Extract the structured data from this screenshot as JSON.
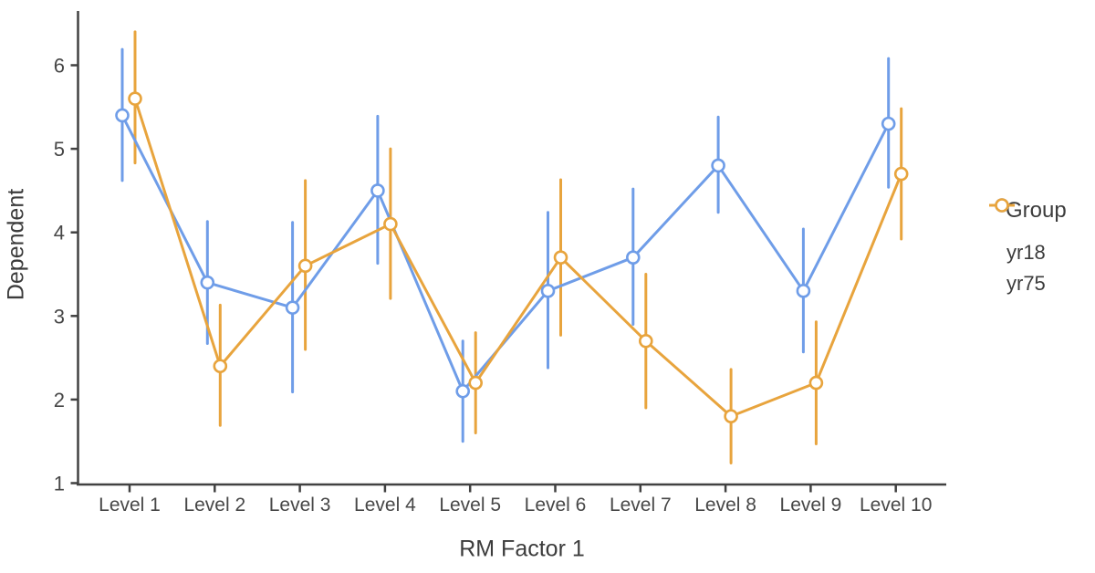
{
  "chart_data": {
    "type": "line",
    "title": "",
    "xlabel": "RM Factor 1",
    "ylabel": "Dependent",
    "categories": [
      "Level 1",
      "Level 2",
      "Level 3",
      "Level 4",
      "Level 5",
      "Level 6",
      "Level 7",
      "Level 8",
      "Level 9",
      "Level 10"
    ],
    "yticks": [
      1,
      2,
      3,
      4,
      5,
      6
    ],
    "ylim": [
      1,
      6.65
    ],
    "grid": false,
    "marker": "open-circle",
    "error_bars": true,
    "legend_title": "Group",
    "legend_position": "right",
    "series": [
      {
        "name": "yr18",
        "color": "#6F9DE8",
        "values": [
          5.4,
          3.4,
          3.1,
          4.5,
          2.1,
          3.3,
          3.7,
          4.8,
          3.3,
          5.3
        ],
        "ci_upper": [
          6.19,
          4.13,
          4.12,
          5.39,
          2.7,
          4.24,
          4.52,
          5.38,
          4.04,
          6.08
        ],
        "ci_lower": [
          4.62,
          2.67,
          2.09,
          3.63,
          1.5,
          2.38,
          2.9,
          4.24,
          2.57,
          4.54
        ]
      },
      {
        "name": "yr75",
        "color": "#E8A43D",
        "values": [
          5.6,
          2.4,
          3.6,
          4.1,
          2.2,
          3.7,
          2.7,
          1.8,
          2.2,
          4.7
        ],
        "ci_upper": [
          6.4,
          3.13,
          4.62,
          5.0,
          2.8,
          4.63,
          3.5,
          2.36,
          2.93,
          5.48
        ],
        "ci_lower": [
          4.83,
          1.69,
          2.6,
          3.21,
          1.6,
          2.77,
          1.9,
          1.24,
          1.47,
          3.92
        ]
      }
    ],
    "axis_color": "#414141",
    "tick_label_color": "#474747"
  }
}
